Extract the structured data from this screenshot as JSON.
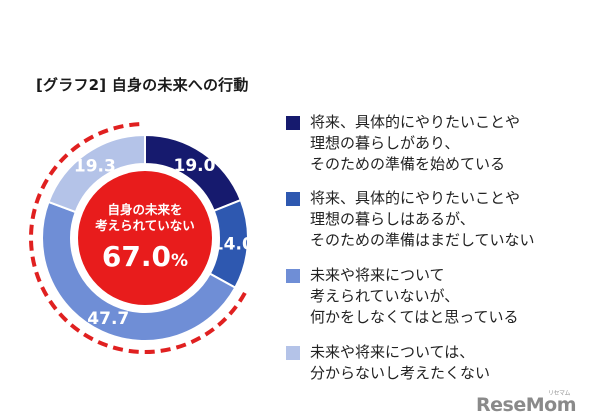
{
  "title": "[グラフ2] 自身の未来への行動",
  "chart_data": {
    "type": "pie",
    "subtype": "donut",
    "center_label": "自身の未来を\n考えられていない",
    "center_value": "67.0%",
    "slices": [
      {
        "label": "将来、具体的にやりたいことや\n理想の暮らしがあり、\nそのための準備を始めている",
        "value": 19.0,
        "value_label": "19.0",
        "color": "#161a6e"
      },
      {
        "label": "将来、具体的にやりたいことや\n理想の暮らしはあるが、\nそのための準備はまだしていない",
        "value": 14.0,
        "value_label": "14.0",
        "color": "#2e58b0"
      },
      {
        "label": "未来や将来について\n考えられていないが、\n何かをしなくてはと思っている",
        "value": 47.7,
        "value_label": "47.7",
        "color": "#6f8ed6"
      },
      {
        "label": "未来や将来については、\n分からないし考えたくない",
        "value": 19.3,
        "value_label": "19.3",
        "color": "#b4c3e8"
      }
    ],
    "highlight_segments": [
      2,
      3
    ],
    "highlight_color": "#e02020",
    "legend_position": "right"
  },
  "watermark": {
    "text": "ReseMom",
    "kana": "リセマム"
  }
}
